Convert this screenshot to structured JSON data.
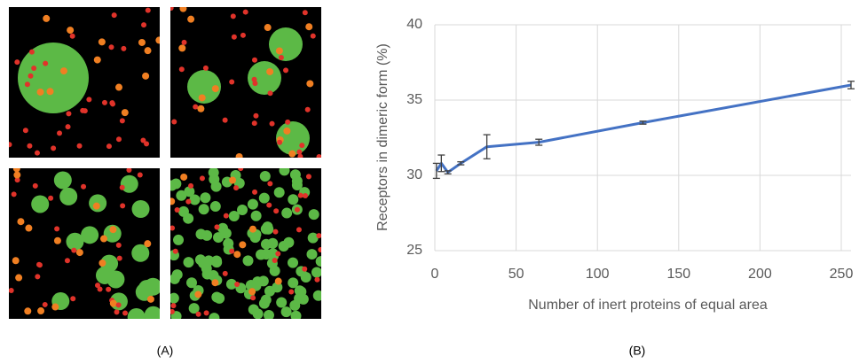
{
  "chart_data": {
    "type": "line",
    "x_label": "Number of inert proteins of equal area",
    "y_label": "Receptors in dimeric form (%)",
    "x": [
      1,
      4,
      8,
      16,
      32,
      64,
      128,
      256
    ],
    "values": [
      30.3,
      30.8,
      30.2,
      30.8,
      31.9,
      32.2,
      33.5,
      36.0
    ],
    "errors": [
      0.5,
      0.55,
      0.1,
      0.1,
      0.8,
      0.2,
      0.1,
      0.25
    ],
    "color": "#4472c4",
    "xlim": [
      0,
      256
    ],
    "ylim": [
      25,
      40
    ],
    "xticks": [
      0,
      50,
      100,
      150,
      200,
      250
    ],
    "yticks": [
      25,
      30,
      35,
      40
    ],
    "grid": true
  },
  "captions": [
    "(A)",
    "(B)"
  ]
}
